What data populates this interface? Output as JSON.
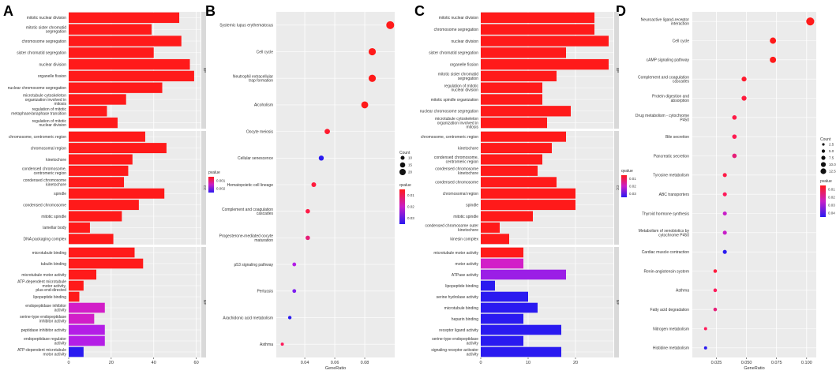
{
  "panel_labels": [
    "A",
    "B",
    "C",
    "D"
  ],
  "chart_data": [
    {
      "type": "bar",
      "panel": "A",
      "xlabel": "",
      "xlim": [
        0,
        62
      ],
      "xticks": [
        "0",
        "20",
        "40",
        "60"
      ],
      "xtick_values": [
        0,
        20,
        40,
        60
      ],
      "legend": {
        "title": "pvalue",
        "labels": [
          "0.001",
          "0.002"
        ]
      },
      "facets": [
        {
          "name": "BP",
          "categories": [
            {
              "label": "mitotic nuclear division",
              "value": 52,
              "color": "#FF1A1A"
            },
            {
              "label": "mitotic sister chromatid\nsegregation",
              "value": 39,
              "color": "#FF1A1A"
            },
            {
              "label": "chromosome segregation",
              "value": 53,
              "color": "#FF1A1A"
            },
            {
              "label": "sister chromatid segregation",
              "value": 40,
              "color": "#FF1A1A"
            },
            {
              "label": "nuclear division",
              "value": 57,
              "color": "#FF1A1A"
            },
            {
              "label": "organelle fission",
              "value": 59,
              "color": "#FF1A1A"
            },
            {
              "label": "nuclear chromosome segregation",
              "value": 44,
              "color": "#FF1A1A"
            },
            {
              "label": "microtubule cytoskeleton\norganization involved in\nmitosis",
              "value": 27,
              "color": "#FF1A1A"
            },
            {
              "label": "regulation of mitotic\nmetaphase/anaphase transition",
              "value": 18,
              "color": "#FF1A1A"
            },
            {
              "label": "regulation of mitotic\nnuclear division",
              "value": 23,
              "color": "#FF1A1A"
            }
          ]
        },
        {
          "name": "CC",
          "categories": [
            {
              "label": "chromosome, centromeric region",
              "value": 36,
              "color": "#FF1A1A"
            },
            {
              "label": "chromosomal region",
              "value": 46,
              "color": "#FF1A1A"
            },
            {
              "label": "kinetochore",
              "value": 30,
              "color": "#FF1A1A"
            },
            {
              "label": "condensed chromosome,\ncentromeric region",
              "value": 28,
              "color": "#FF1A1A"
            },
            {
              "label": "condensed chromosome\nkinetochore",
              "value": 26,
              "color": "#FF1A1A"
            },
            {
              "label": "spindle",
              "value": 45,
              "color": "#FF1A1A"
            },
            {
              "label": "condensed chromosome",
              "value": 33,
              "color": "#FF1A1A"
            },
            {
              "label": "mitotic spindle",
              "value": 25,
              "color": "#FF1A1A"
            },
            {
              "label": "lamellar body",
              "value": 10,
              "color": "#FF1A1A"
            },
            {
              "label": "DNA packaging complex",
              "value": 21,
              "color": "#FF1A1A"
            }
          ]
        },
        {
          "name": "MF",
          "categories": [
            {
              "label": "microtubule binding",
              "value": 31,
              "color": "#FF1A1A"
            },
            {
              "label": "tubulin binding",
              "value": 35,
              "color": "#FF1A1A"
            },
            {
              "label": "microtubule motor activity",
              "value": 13,
              "color": "#FF1A1A"
            },
            {
              "label": "ATP-dependent microtubule\nmotor activity,\nplus-end-directed",
              "value": 7,
              "color": "#FF1A1A"
            },
            {
              "label": "lipopeptide binding",
              "value": 5,
              "color": "#FF1A1A"
            },
            {
              "label": "endopeptidase inhibitor\nactivity",
              "value": 17,
              "color": "#D21EC8"
            },
            {
              "label": "serine-type endopeptidase\ninhibitor activity",
              "value": 12,
              "color": "#D21EC8"
            },
            {
              "label": "peptidase inhibitor activity",
              "value": 17,
              "color": "#B41EE6"
            },
            {
              "label": "endopeptidase regulator\nactivity",
              "value": 17,
              "color": "#B41EE6"
            },
            {
              "label": "ATP-dependent microtubule\nmotor activity",
              "value": 7,
              "color": "#2A1AF0"
            }
          ]
        }
      ]
    },
    {
      "type": "scatter",
      "panel": "B",
      "xlabel": "GeneRatio",
      "xlim": [
        0.021,
        0.1
      ],
      "xticks": [
        "0.04",
        "0.06",
        "0.08"
      ],
      "xtick_values": [
        0.04,
        0.06,
        0.08
      ],
      "legend": {
        "size_title": "Count",
        "size_labels": [
          "10",
          "15",
          "20"
        ],
        "color_title": "qvalue",
        "color_labels": [
          "0.01",
          "0.02",
          "0.03"
        ]
      },
      "points": [
        {
          "label": "Systemic lupus erythematosus",
          "x": 0.097,
          "count": 19,
          "color": "#FF1A1A"
        },
        {
          "label": "Cell cycle",
          "x": 0.085,
          "count": 17,
          "color": "#FF1A1A"
        },
        {
          "label": "Neutrophil extracellular\ntrap formation",
          "x": 0.085,
          "count": 17,
          "color": "#FF1A1A"
        },
        {
          "label": "Alcoholism",
          "x": 0.08,
          "count": 16,
          "color": "#FF1A1A"
        },
        {
          "label": "Oocyte meiosis",
          "x": 0.055,
          "count": 11,
          "color": "#FF1A2E"
        },
        {
          "label": "Cellular senescence",
          "x": 0.051,
          "count": 10,
          "color": "#2A1AF0"
        },
        {
          "label": "Hematopoietic cell lineage",
          "x": 0.046,
          "count": 9,
          "color": "#FF1A3C"
        },
        {
          "label": "Complement and coagulation\ncascades",
          "x": 0.042,
          "count": 8,
          "color": "#FF1A46"
        },
        {
          "label": "Progesterone-mediated oocyte\nmaturation",
          "x": 0.042,
          "count": 8,
          "color": "#E61E78"
        },
        {
          "label": "p53 signaling pathway",
          "x": 0.033,
          "count": 6,
          "color": "#B41EE6"
        },
        {
          "label": "Pertussis",
          "x": 0.033,
          "count": 6,
          "color": "#7D1EF0"
        },
        {
          "label": "Arachidonic acid metabolism",
          "x": 0.03,
          "count": 5,
          "color": "#2A1AF0"
        },
        {
          "label": "Asthma",
          "x": 0.025,
          "count": 4,
          "color": "#FF1A5A"
        }
      ]
    },
    {
      "type": "bar",
      "panel": "C",
      "xlabel": "",
      "xlim": [
        0,
        28
      ],
      "xticks": [
        "0",
        "10",
        "20"
      ],
      "xtick_values": [
        0,
        10,
        20
      ],
      "legend": {
        "title": "qvalue",
        "labels": [
          "0.01",
          "0.02",
          "0.03"
        ]
      },
      "facets": [
        {
          "name": "BP",
          "categories": [
            {
              "label": "mitotic nuclear division",
              "value": 24,
              "color": "#FF1A1A"
            },
            {
              "label": "chromosome segregation",
              "value": 24,
              "color": "#FF1A1A"
            },
            {
              "label": "nuclear division",
              "value": 27,
              "color": "#FF1A1A"
            },
            {
              "label": "sister chromatid segregation",
              "value": 18,
              "color": "#FF1A1A"
            },
            {
              "label": "organelle fission",
              "value": 27,
              "color": "#FF1A1A"
            },
            {
              "label": "mitotic sister chromatid\nsegregation",
              "value": 16,
              "color": "#FF1A1A"
            },
            {
              "label": "regulation of mitotic\nnuclear division",
              "value": 13,
              "color": "#FF1A1A"
            },
            {
              "label": "mitotic spindle organization",
              "value": 13,
              "color": "#FF1A1A"
            },
            {
              "label": "nuclear chromosome segregation",
              "value": 19,
              "color": "#FF1A1A"
            },
            {
              "label": "microtubule cytoskeleton\norganization involved in\nmitosis",
              "value": 14,
              "color": "#FF1A1A"
            }
          ]
        },
        {
          "name": "CC",
          "categories": [
            {
              "label": "chromosome, centromeric region",
              "value": 18,
              "color": "#FF1A1A"
            },
            {
              "label": "kinetochore",
              "value": 15,
              "color": "#FF1A1A"
            },
            {
              "label": "condensed chromosome,\ncentromeric region",
              "value": 13,
              "color": "#FF1A1A"
            },
            {
              "label": "condensed chromosome\nkinetochore",
              "value": 12,
              "color": "#FF1A1A"
            },
            {
              "label": "condensed chromosome",
              "value": 16,
              "color": "#FF1A1A"
            },
            {
              "label": "chromosomal region",
              "value": 20,
              "color": "#FF1A1A"
            },
            {
              "label": "spindle",
              "value": 20,
              "color": "#FF1A1A"
            },
            {
              "label": "mitotic spindle",
              "value": 11,
              "color": "#FF1A1A"
            },
            {
              "label": "condensed chromosome outer\nkinetochore",
              "value": 4,
              "color": "#FF1A1A"
            },
            {
              "label": "kinesin complex",
              "value": 6,
              "color": "#FF1A1A"
            }
          ]
        },
        {
          "name": "MF",
          "categories": [
            {
              "label": "microtubule motor activity",
              "value": 9,
              "color": "#FF1A1A"
            },
            {
              "label": "motor activity",
              "value": 9,
              "color": "#D21EC8"
            },
            {
              "label": "ATPase activity",
              "value": 18,
              "color": "#9B1EE6"
            },
            {
              "label": "lipopeptide binding",
              "value": 3,
              "color": "#2A1AF0"
            },
            {
              "label": "serine hydrolase activity",
              "value": 10,
              "color": "#2A1AF0"
            },
            {
              "label": "microtubule binding",
              "value": 12,
              "color": "#2A1AF0"
            },
            {
              "label": "heparin binding",
              "value": 9,
              "color": "#2A1AF0"
            },
            {
              "label": "receptor ligand activity",
              "value": 17,
              "color": "#2A1AF0"
            },
            {
              "label": "serine-type endopeptidase\nactivity",
              "value": 9,
              "color": "#2A1AF0"
            },
            {
              "label": "signaling receptor activator\nactivity",
              "value": 17,
              "color": "#2A1AF0"
            }
          ]
        }
      ]
    },
    {
      "type": "scatter",
      "panel": "D",
      "xlabel": "GeneRatio",
      "xlim": [
        0.005,
        0.108
      ],
      "xticks": [
        "0.025",
        "0.050",
        "0.075",
        "0.100"
      ],
      "xtick_values": [
        0.025,
        0.05,
        0.075,
        0.1
      ],
      "legend": {
        "size_title": "Count",
        "size_labels": [
          "2.5",
          "5.0",
          "7.5",
          "10.0",
          "12.5"
        ],
        "color_title": "pvalue",
        "color_labels": [
          "0.01",
          "0.02",
          "0.03",
          "0.04"
        ]
      },
      "points": [
        {
          "label": "Neuroactive ligand-receptor\ninteraction",
          "x": 0.103,
          "count": 13,
          "color": "#FF1A1A"
        },
        {
          "label": "Cell cycle",
          "x": 0.072,
          "count": 9,
          "color": "#FF1A1A"
        },
        {
          "label": "cAMP signaling pathway",
          "x": 0.072,
          "count": 9,
          "color": "#FF1A1A"
        },
        {
          "label": "Complement and coagulation\ncascades",
          "x": 0.048,
          "count": 6,
          "color": "#FF1A2E"
        },
        {
          "label": "Protein digestion and\nabsorption",
          "x": 0.048,
          "count": 6,
          "color": "#FF1A3C"
        },
        {
          "label": "Drug metabolism - cytochrome\nP450",
          "x": 0.04,
          "count": 5,
          "color": "#FF1A46"
        },
        {
          "label": "Bile secretion",
          "x": 0.04,
          "count": 5,
          "color": "#FF1A50"
        },
        {
          "label": "Pancreatic secretion",
          "x": 0.04,
          "count": 5,
          "color": "#E61E78"
        },
        {
          "label": "Tyrosine metabolism",
          "x": 0.032,
          "count": 4,
          "color": "#FF1A46"
        },
        {
          "label": "ABC transporters",
          "x": 0.032,
          "count": 4,
          "color": "#FF1A5A"
        },
        {
          "label": "Thyroid hormone synthesis",
          "x": 0.032,
          "count": 4,
          "color": "#C81EC8"
        },
        {
          "label": "Metabolism of xenobiotics by\ncytochrome P450",
          "x": 0.032,
          "count": 4,
          "color": "#C81EC8"
        },
        {
          "label": "Cardiac muscle contraction",
          "x": 0.032,
          "count": 4,
          "color": "#2A1AF0"
        },
        {
          "label": "Renin-angiotensin system",
          "x": 0.024,
          "count": 3,
          "color": "#FF1A3C"
        },
        {
          "label": "Asthma",
          "x": 0.024,
          "count": 3,
          "color": "#FF1A5A"
        },
        {
          "label": "Fatty acid degradation",
          "x": 0.024,
          "count": 3,
          "color": "#E61E78"
        },
        {
          "label": "Nitrogen metabolism",
          "x": 0.016,
          "count": 2,
          "color": "#FF1A5A"
        },
        {
          "label": "Histidine metabolism",
          "x": 0.016,
          "count": 2,
          "color": "#2A1AF0"
        }
      ]
    }
  ]
}
